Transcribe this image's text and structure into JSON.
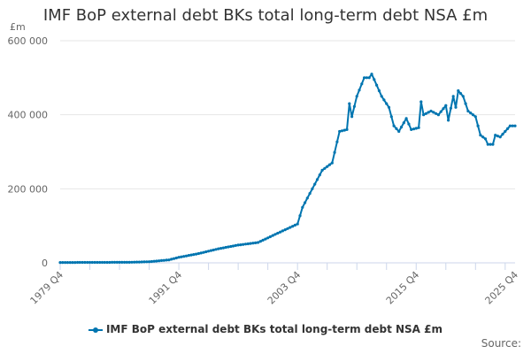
{
  "chart_data": {
    "type": "line",
    "title": "IMF BoP external debt BKs total long-term debt NSA £m",
    "ylabel": "£m",
    "ylim": [
      0,
      600000
    ],
    "y_ticks": [
      0,
      200000,
      400000,
      600000
    ],
    "y_tick_labels": [
      "0",
      "200 000",
      "400 000",
      "600 000"
    ],
    "x_ticks": [
      "1979 Q4",
      "1991 Q4",
      "2003 Q4",
      "2015 Q4",
      "2025 Q4"
    ],
    "grid": "horizontal",
    "legend_position": "bottom",
    "series_color": "#0075b0",
    "series": [
      {
        "name": "IMF BoP external debt BKs total long-term debt NSA £m",
        "x_start": "1979 Q4",
        "x_end": "2025 Q4",
        "anchors": [
          [
            "1979 Q4",
            1000
          ],
          [
            "1983 Q4",
            1200
          ],
          [
            "1986 Q4",
            1500
          ],
          [
            "1988 Q4",
            3000
          ],
          [
            "1990 Q4",
            8000
          ],
          [
            "1991 Q4",
            15000
          ],
          [
            "1993 Q4",
            25000
          ],
          [
            "1995 Q4",
            38000
          ],
          [
            "1997 Q4",
            48000
          ],
          [
            "1999 Q4",
            55000
          ],
          [
            "2001 Q4",
            80000
          ],
          [
            "2003 Q4",
            105000
          ],
          [
            "2004 Q2",
            150000
          ],
          [
            "2005 Q2",
            200000
          ],
          [
            "2006 Q2",
            250000
          ],
          [
            "2007 Q2",
            270000
          ],
          [
            "2008 Q1",
            355000
          ],
          [
            "2008 Q4",
            360000
          ],
          [
            "2009 Q1",
            430000
          ],
          [
            "2009 Q2",
            395000
          ],
          [
            "2009 Q4",
            450000
          ],
          [
            "2010 Q3",
            500000
          ],
          [
            "2011 Q1",
            500000
          ],
          [
            "2011 Q2",
            510000
          ],
          [
            "2012 Q2",
            450000
          ],
          [
            "2013 Q1",
            420000
          ],
          [
            "2013 Q3",
            370000
          ],
          [
            "2014 Q1",
            355000
          ],
          [
            "2014 Q4",
            390000
          ],
          [
            "2015 Q2",
            360000
          ],
          [
            "2016 Q1",
            365000
          ],
          [
            "2016 Q2",
            435000
          ],
          [
            "2016 Q3",
            400000
          ],
          [
            "2017 Q2",
            410000
          ],
          [
            "2018 Q1",
            400000
          ],
          [
            "2018 Q4",
            425000
          ],
          [
            "2019 Q1",
            385000
          ],
          [
            "2019 Q3",
            450000
          ],
          [
            "2019 Q4",
            420000
          ],
          [
            "2020 Q1",
            465000
          ],
          [
            "2020 Q3",
            450000
          ],
          [
            "2021 Q1",
            410000
          ],
          [
            "2021 Q4",
            395000
          ],
          [
            "2022 Q2",
            345000
          ],
          [
            "2022 Q4",
            335000
          ],
          [
            "2023 Q1",
            320000
          ],
          [
            "2023 Q3",
            320000
          ],
          [
            "2023 Q4",
            345000
          ],
          [
            "2024 Q2",
            340000
          ],
          [
            "2024 Q4",
            355000
          ],
          [
            "2025 Q2",
            370000
          ],
          [
            "2025 Q4",
            370000
          ]
        ]
      }
    ],
    "source_label": "Source:"
  }
}
